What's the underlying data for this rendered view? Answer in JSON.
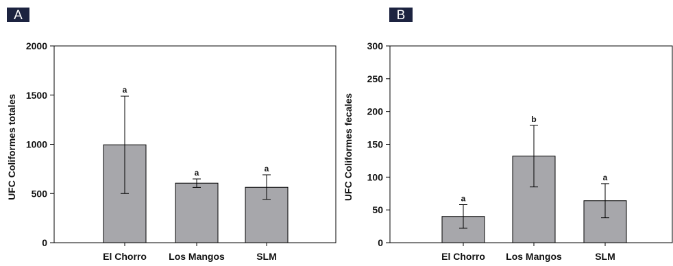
{
  "chart_data": [
    {
      "type": "bar",
      "panel_label": "A",
      "categories": [
        "El Chorro",
        "Los Mangos",
        "SLM"
      ],
      "values": [
        995,
        605,
        563
      ],
      "error_low": [
        500,
        562,
        440
      ],
      "error_high": [
        1490,
        648,
        690
      ],
      "significance_letters": [
        "a",
        "a",
        "a"
      ],
      "ylabel": "UFC Coliformes totales",
      "ylim": [
        0,
        2000
      ],
      "yticks": [
        0,
        500,
        1000,
        1500,
        2000
      ],
      "grid": false,
      "bar_color": "#a7a7ab",
      "panel_label_bg": "#1c2340"
    },
    {
      "type": "bar",
      "panel_label": "B",
      "categories": [
        "El Chorro",
        "Los Mangos",
        "SLM"
      ],
      "values": [
        40,
        132,
        64
      ],
      "error_low": [
        22,
        85,
        38
      ],
      "error_high": [
        58,
        179,
        90
      ],
      "significance_letters": [
        "a",
        "b",
        "a"
      ],
      "ylabel": "UFC Coliformes fecales",
      "ylim": [
        0,
        300
      ],
      "yticks": [
        0,
        50,
        100,
        150,
        200,
        250,
        300
      ],
      "grid": false,
      "bar_color": "#a7a7ab",
      "panel_label_bg": "#1c2340"
    }
  ]
}
